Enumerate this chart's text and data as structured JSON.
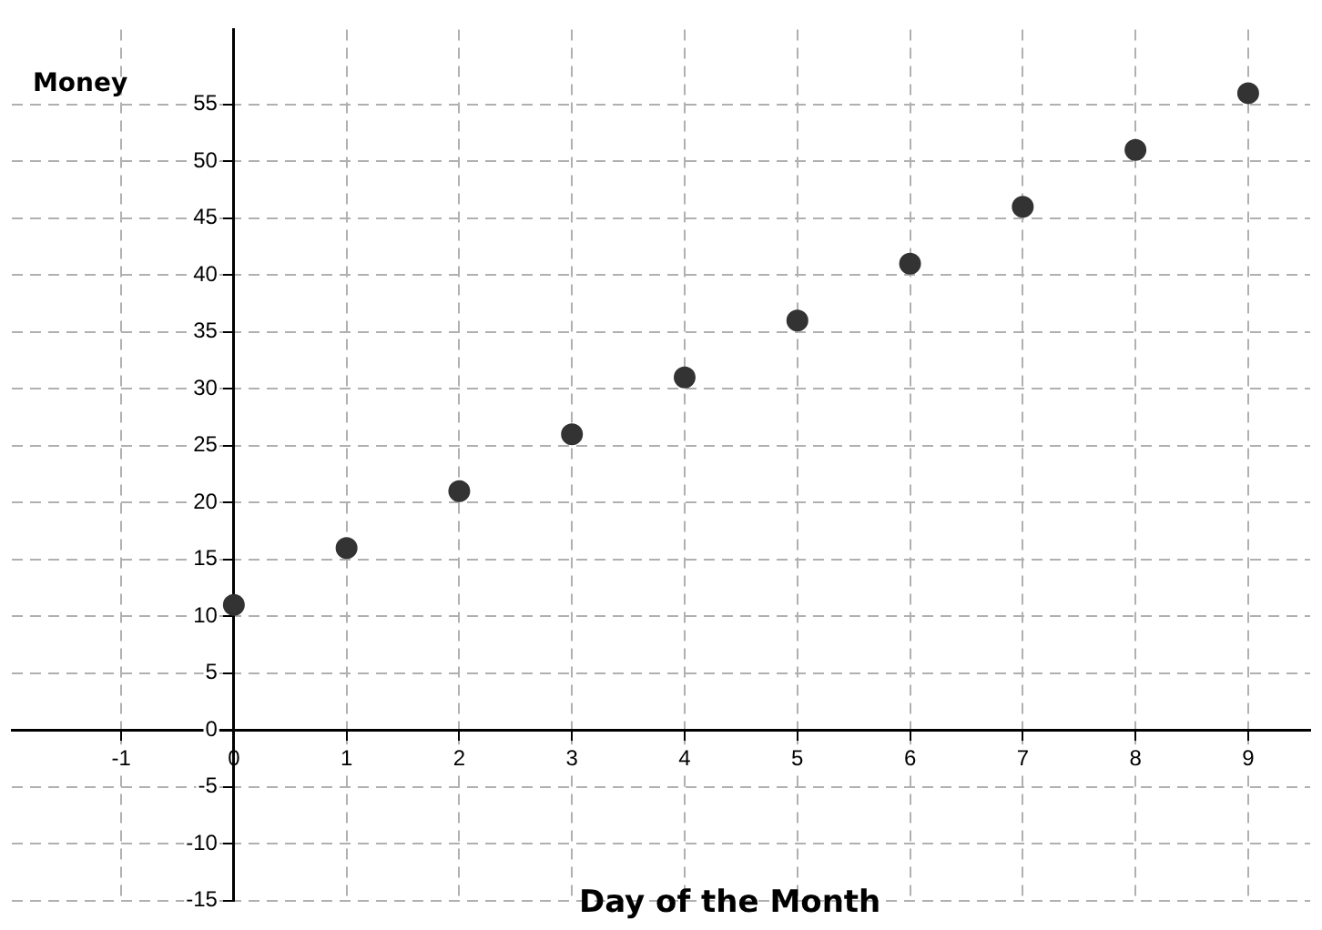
{
  "chart_data": {
    "type": "scatter",
    "xlabel": "Day of the Month",
    "ylabel": "Money",
    "x": [
      0,
      1,
      2,
      3,
      4,
      5,
      6,
      7,
      8,
      9
    ],
    "series": [
      {
        "color": "#333333",
        "values": [
          11,
          16,
          21,
          26,
          31,
          36,
          41,
          46,
          51,
          56
        ]
      }
    ],
    "xlim": [
      -1.97,
      9.55
    ],
    "ylim": [
      -15,
      61.6
    ],
    "xticks": [
      -1,
      0,
      1,
      2,
      3,
      4,
      5,
      6,
      7,
      8,
      9
    ],
    "yticks": [
      -15,
      -10,
      -5,
      0,
      5,
      10,
      15,
      20,
      25,
      30,
      35,
      40,
      45,
      50,
      55
    ],
    "grid": true,
    "marker": "circle",
    "legend": false
  }
}
